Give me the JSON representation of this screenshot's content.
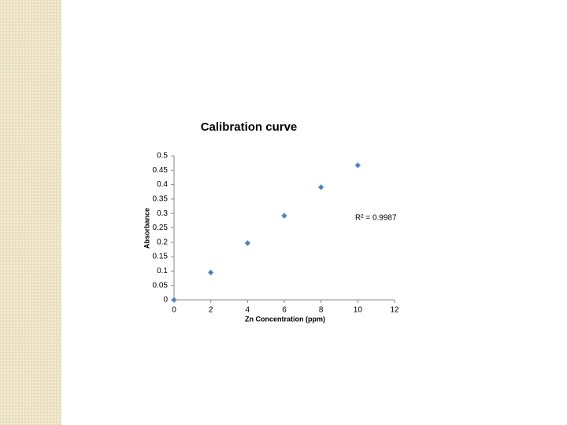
{
  "chart_data": {
    "type": "scatter",
    "title": "Calibration curve",
    "x_label": "Zn Concentration (ppm)",
    "y_label": "Absorbance",
    "annotation": "R² = 0.9987",
    "series": [
      {
        "name": "Absorbance",
        "color": "#4a7ebb",
        "x": [
          0,
          2,
          4,
          6,
          8,
          10
        ],
        "values": [
          0,
          0.095,
          0.197,
          0.292,
          0.391,
          0.467
        ]
      }
    ],
    "xlim": [
      0,
      12
    ],
    "xticks": [
      0,
      2,
      4,
      6,
      8,
      10,
      12
    ],
    "ylim": [
      0,
      0.5
    ],
    "yticks": [
      0,
      0.05,
      0.1,
      0.15,
      0.2,
      0.25,
      0.3,
      0.35,
      0.4,
      0.45,
      0.5
    ],
    "grid": false
  }
}
